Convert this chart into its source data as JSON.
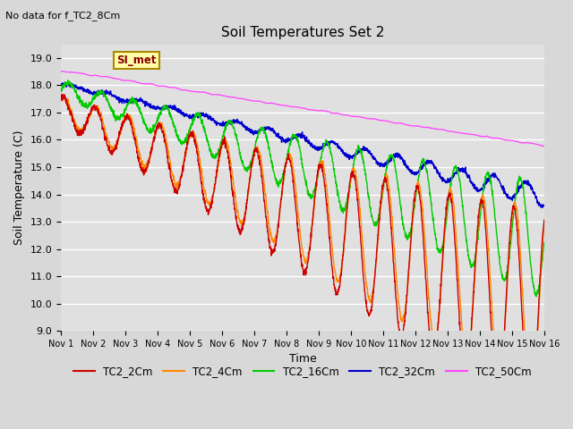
{
  "title": "Soil Temperatures Set 2",
  "subtitle": "No data for f_TC2_8Cm",
  "xlabel": "Time",
  "ylabel": "Soil Temperature (C)",
  "ylim": [
    9.0,
    19.5
  ],
  "yticks": [
    9.0,
    10.0,
    11.0,
    12.0,
    13.0,
    14.0,
    15.0,
    16.0,
    17.0,
    18.0,
    19.0
  ],
  "xlim": [
    0,
    15
  ],
  "xtick_labels": [
    "Nov 1",
    "Nov 2",
    "Nov 3",
    "Nov 4",
    "Nov 5",
    "Nov 6",
    "Nov 7",
    "Nov 8",
    "Nov 9",
    "Nov 10",
    "Nov 11",
    "Nov 12",
    "Nov 13",
    "Nov 14",
    "Nov 15",
    "Nov 16"
  ],
  "colors": {
    "TC2_2Cm": "#cc0000",
    "TC2_4Cm": "#ff8800",
    "TC2_16Cm": "#00cc00",
    "TC2_32Cm": "#0000cc",
    "TC2_50Cm": "#ff44ff"
  },
  "background_color": "#e8e8e8",
  "legend_label": "SI_met",
  "n_points": 2160,
  "duration_days": 15,
  "figsize": [
    6.4,
    4.8
  ],
  "dpi": 100
}
